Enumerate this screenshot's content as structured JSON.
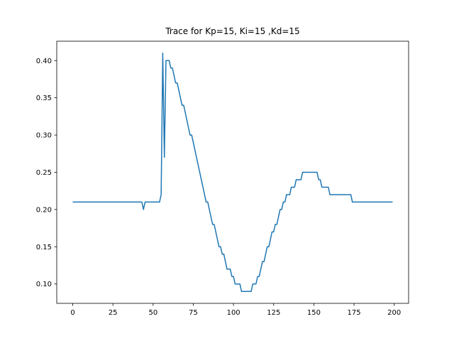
{
  "chart_data": {
    "type": "line",
    "title": "Trace for Kp=15, Ki=15 ,Kd=15",
    "xlabel": "",
    "ylabel": "",
    "xlim": [
      -9.95,
      208.95
    ],
    "ylim": [
      0.074,
      0.426
    ],
    "xticks": [
      0,
      25,
      50,
      75,
      100,
      125,
      150,
      175,
      200
    ],
    "yticks": [
      0.1,
      0.15,
      0.2,
      0.25,
      0.3,
      0.35,
      0.4
    ],
    "grid": false,
    "legend": "none",
    "series": [
      {
        "color": "#1f77b4",
        "x": [
          0,
          43,
          44,
          45,
          54,
          55,
          56,
          57,
          58,
          60,
          61,
          62,
          63,
          64,
          65,
          66,
          67,
          68,
          69,
          70,
          71,
          72,
          73,
          74,
          75,
          76,
          77,
          78,
          79,
          80,
          81,
          82,
          83,
          84,
          85,
          86,
          87,
          88,
          89,
          90,
          91,
          92,
          93,
          94,
          95,
          96,
          97,
          98,
          99,
          100,
          101,
          102,
          103,
          104,
          105,
          106,
          107,
          108,
          109,
          110,
          111,
          112,
          113,
          114,
          115,
          116,
          117,
          118,
          119,
          120,
          121,
          122,
          123,
          124,
          125,
          126,
          127,
          128,
          129,
          130,
          131,
          132,
          133,
          134,
          135,
          136,
          137,
          138,
          139,
          140,
          141,
          142,
          143,
          144,
          145,
          146,
          147,
          148,
          149,
          150,
          151,
          152,
          153,
          154,
          155,
          156,
          157,
          158,
          159,
          160,
          161,
          162,
          163,
          164,
          165,
          166,
          167,
          168,
          169,
          170,
          171,
          172,
          173,
          174,
          175,
          176,
          177,
          178,
          179,
          180,
          181,
          182,
          183,
          184,
          185,
          186,
          187,
          188,
          189,
          190,
          191,
          192,
          193,
          194,
          195,
          196,
          197,
          198,
          199
        ],
        "y": [
          0.21,
          0.21,
          0.2,
          0.21,
          0.21,
          0.22,
          0.41,
          0.27,
          0.4,
          0.4,
          0.39,
          0.39,
          0.38,
          0.37,
          0.37,
          0.36,
          0.35,
          0.34,
          0.34,
          0.33,
          0.32,
          0.31,
          0.3,
          0.3,
          0.29,
          0.28,
          0.27,
          0.26,
          0.25,
          0.24,
          0.23,
          0.22,
          0.21,
          0.21,
          0.2,
          0.19,
          0.18,
          0.18,
          0.17,
          0.16,
          0.15,
          0.15,
          0.14,
          0.14,
          0.13,
          0.12,
          0.12,
          0.12,
          0.11,
          0.11,
          0.1,
          0.1,
          0.1,
          0.1,
          0.09,
          0.09,
          0.09,
          0.09,
          0.09,
          0.09,
          0.09,
          0.1,
          0.1,
          0.1,
          0.11,
          0.11,
          0.12,
          0.13,
          0.13,
          0.14,
          0.15,
          0.15,
          0.16,
          0.17,
          0.17,
          0.18,
          0.18,
          0.19,
          0.2,
          0.2,
          0.21,
          0.21,
          0.22,
          0.22,
          0.22,
          0.23,
          0.23,
          0.23,
          0.24,
          0.24,
          0.24,
          0.24,
          0.25,
          0.25,
          0.25,
          0.25,
          0.25,
          0.25,
          0.25,
          0.25,
          0.25,
          0.25,
          0.24,
          0.24,
          0.23,
          0.23,
          0.23,
          0.23,
          0.23,
          0.22,
          0.22,
          0.22,
          0.22,
          0.22,
          0.22,
          0.22,
          0.22,
          0.22,
          0.22,
          0.22,
          0.22,
          0.22,
          0.22,
          0.21,
          0.21,
          0.21,
          0.21,
          0.21,
          0.21,
          0.21,
          0.21,
          0.21,
          0.21,
          0.21,
          0.21,
          0.21,
          0.21,
          0.21,
          0.21,
          0.21,
          0.21,
          0.21,
          0.21,
          0.21,
          0.21,
          0.21,
          0.21,
          0.21,
          0.21
        ]
      }
    ]
  }
}
